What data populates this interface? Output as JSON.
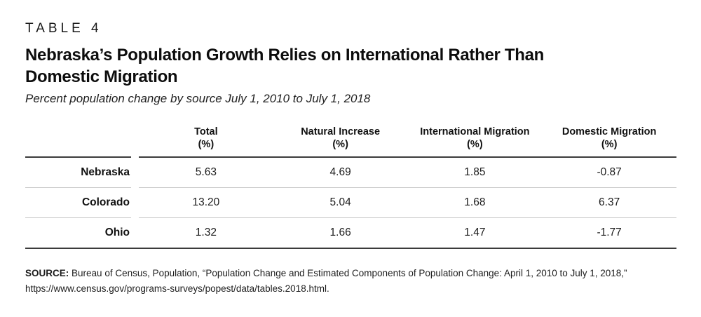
{
  "header": {
    "table_label": "TABLE 4",
    "title_line1": "Nebraska’s Population Growth Relies on International Rather Than",
    "title_line2": "Domestic Migration",
    "subtitle": "Percent population change by source July 1, 2010 to July 1, 2018"
  },
  "chart_data": {
    "type": "table",
    "title": "Nebraska’s Population Growth Relies on International Rather Than Domestic Migration",
    "subtitle": "Percent population change by source July 1, 2010 to July 1, 2018",
    "columns": [
      {
        "name": "Total",
        "unit": "(%)"
      },
      {
        "name": "Natural Increase",
        "unit": "(%)"
      },
      {
        "name": "International Migration",
        "unit": "(%)"
      },
      {
        "name": "Domestic Migration",
        "unit": "(%)"
      }
    ],
    "rows": [
      {
        "label": "Nebraska",
        "values": [
          "5.63",
          "4.69",
          "1.85",
          "-0.87"
        ]
      },
      {
        "label": "Colorado",
        "values": [
          "13.20",
          "5.04",
          "1.68",
          "6.37"
        ]
      },
      {
        "label": "Ohio",
        "values": [
          "1.32",
          "1.66",
          "1.47",
          "-1.77"
        ]
      }
    ]
  },
  "source": {
    "label": "SOURCE:",
    "line1": "Bureau of Census, Population, “Population Change and Estimated Components of Population Change: April 1, 2010 to July 1, 2018,”",
    "line2": "https://www.census.gov/programs-surveys/popest/data/tables.2018.html."
  },
  "colors": {
    "rule_dark": "#3b3b3b",
    "rule_light": "#c9c9c9",
    "text": "#1a1a1a",
    "background": "#ffffff"
  }
}
